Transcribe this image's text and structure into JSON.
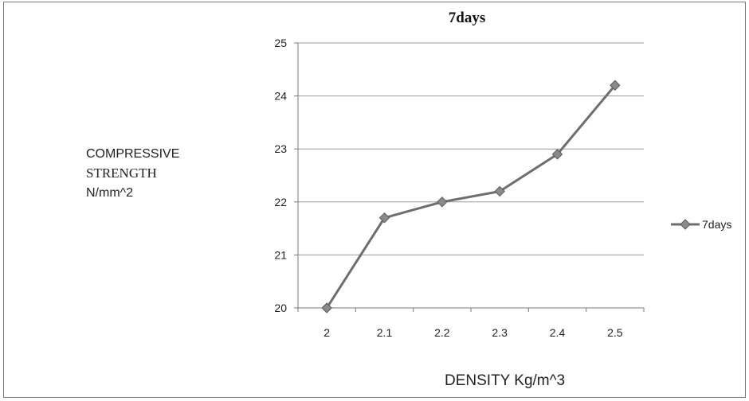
{
  "chart_data": {
    "type": "line",
    "title": "7days",
    "xlabel": "DENSITY  Kg/m^3",
    "ylabel_lines": [
      "COMPRESSIVE",
      "STRENGTH",
      "N/mm^2"
    ],
    "categories": [
      "2",
      "2.1",
      "2.2",
      "2.3",
      "2.4",
      "2.5"
    ],
    "series": [
      {
        "name": "7days",
        "values": [
          20.0,
          21.7,
          22.0,
          22.2,
          22.9,
          24.2
        ]
      }
    ],
    "ylim": [
      20,
      25
    ],
    "yticks": [
      "20",
      "21",
      "22",
      "23",
      "24",
      "25"
    ],
    "grid": true,
    "legend_position": "right",
    "colors": {
      "series": "#6e6e6e",
      "marker": "#8a8a8a",
      "grid": "#9a9a9a",
      "axis": "#7a7a7a"
    }
  }
}
